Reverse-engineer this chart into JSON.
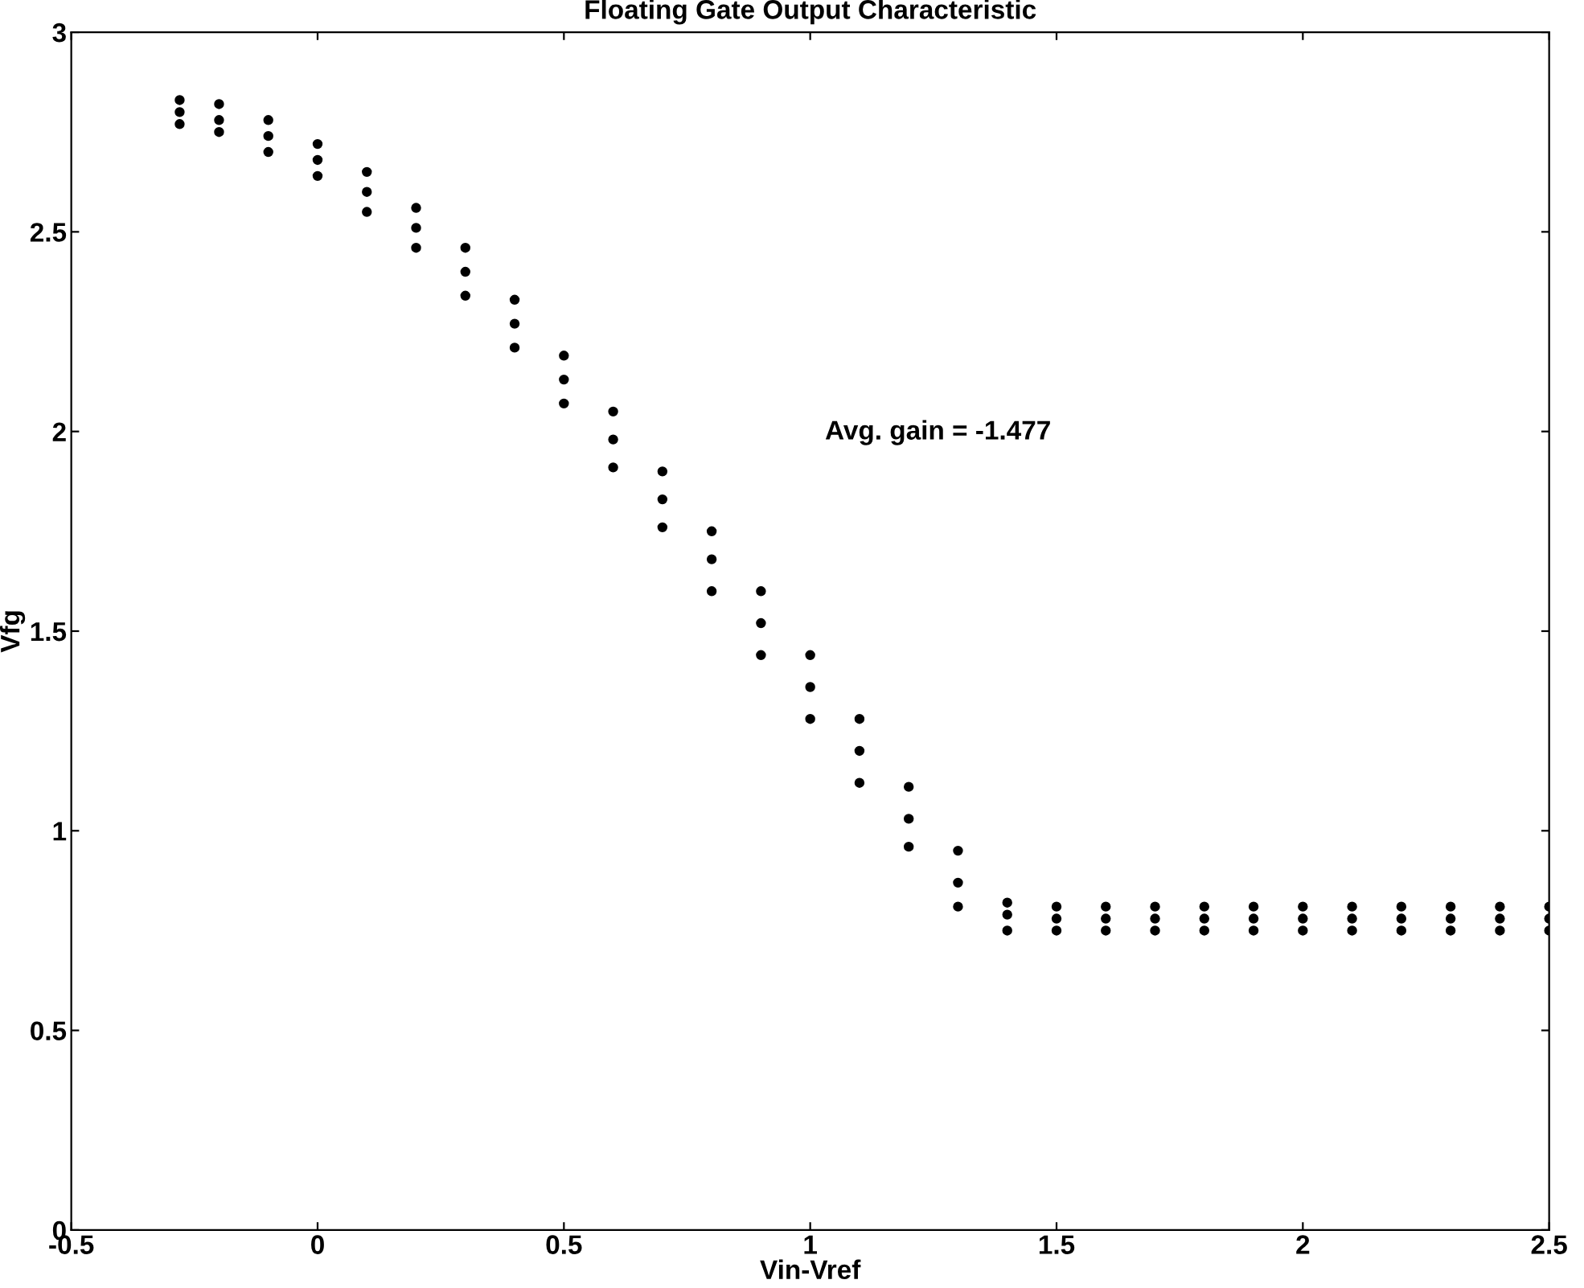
{
  "chart_data": {
    "type": "scatter",
    "title": "Floating Gate Output Characteristic",
    "xlabel": "Vin-Vref",
    "ylabel": "Vfg",
    "annotations": [
      "Avg. gain = -1.477"
    ],
    "series": [
      {
        "color": "#000000",
        "x": [
          -0.28,
          -0.2,
          -0.1,
          0,
          0.1,
          0.2,
          0.3,
          0.4,
          0.5,
          0.6,
          0.7,
          0.8,
          0.9,
          1.0,
          1.1,
          1.2,
          1.3,
          1.4,
          1.5,
          1.6,
          1.7,
          1.8,
          1.9,
          2.0,
          2.1,
          2.2,
          2.3,
          2.4,
          2.5
        ],
        "values": [
          2.83,
          2.82,
          2.78,
          2.72,
          2.65,
          2.56,
          2.46,
          2.33,
          2.19,
          2.05,
          1.9,
          1.75,
          1.6,
          1.44,
          1.28,
          1.11,
          0.95,
          0.82,
          0.81,
          0.81,
          0.81,
          0.81,
          0.81,
          0.81,
          0.81,
          0.81,
          0.81,
          0.81,
          0.81
        ]
      },
      {
        "color": "#000000",
        "x": [
          -0.28,
          -0.2,
          -0.1,
          0,
          0.1,
          0.2,
          0.3,
          0.4,
          0.5,
          0.6,
          0.7,
          0.8,
          0.9,
          1.0,
          1.1,
          1.2,
          1.3,
          1.4,
          1.5,
          1.6,
          1.7,
          1.8,
          1.9,
          2.0,
          2.1,
          2.2,
          2.3,
          2.4,
          2.5
        ],
        "values": [
          2.8,
          2.78,
          2.74,
          2.68,
          2.6,
          2.51,
          2.4,
          2.27,
          2.13,
          1.98,
          1.83,
          1.68,
          1.52,
          1.36,
          1.2,
          1.03,
          0.87,
          0.79,
          0.78,
          0.78,
          0.78,
          0.78,
          0.78,
          0.78,
          0.78,
          0.78,
          0.78,
          0.78,
          0.78
        ]
      },
      {
        "color": "#000000",
        "x": [
          -0.28,
          -0.2,
          -0.1,
          0,
          0.1,
          0.2,
          0.3,
          0.4,
          0.5,
          0.6,
          0.7,
          0.8,
          0.9,
          1.0,
          1.1,
          1.2,
          1.3,
          1.4,
          1.5,
          1.6,
          1.7,
          1.8,
          1.9,
          2.0,
          2.1,
          2.2,
          2.3,
          2.4,
          2.5
        ],
        "values": [
          2.77,
          2.75,
          2.7,
          2.64,
          2.55,
          2.46,
          2.34,
          2.21,
          2.07,
          1.91,
          1.76,
          1.6,
          1.44,
          1.28,
          1.12,
          0.96,
          0.81,
          0.75,
          0.75,
          0.75,
          0.75,
          0.75,
          0.75,
          0.75,
          0.75,
          0.75,
          0.75,
          0.75,
          0.75
        ]
      }
    ],
    "marker": "circle",
    "grid": false,
    "legend": false,
    "xlim": [
      -0.5,
      2.5
    ],
    "xticks": [
      -0.5,
      0,
      0.5,
      1,
      1.5,
      2,
      2.5
    ],
    "ylim": [
      0,
      3
    ],
    "yticks": [
      0,
      0.5,
      1,
      1.5,
      2,
      2.5,
      3
    ]
  }
}
